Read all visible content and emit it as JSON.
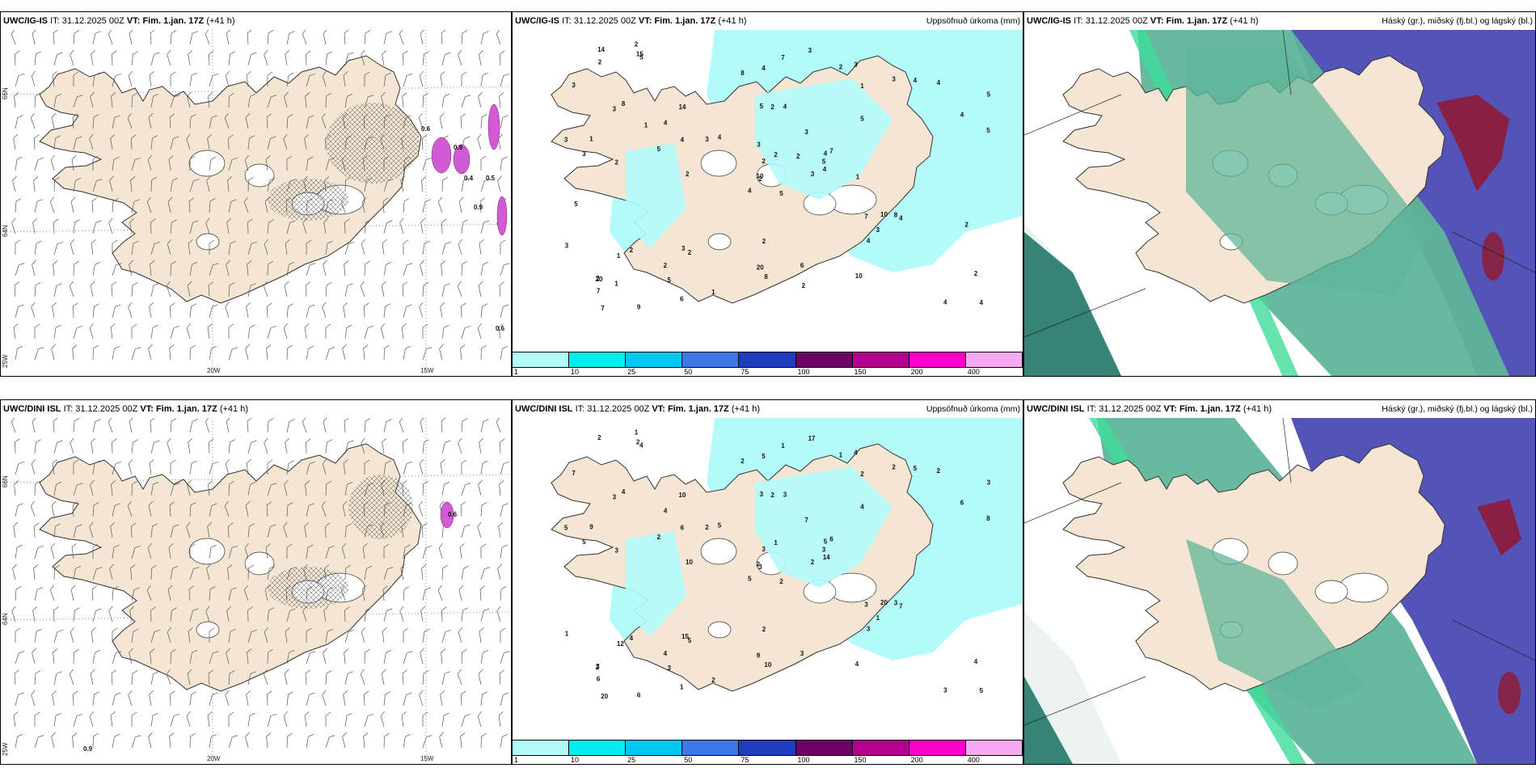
{
  "top_row": {
    "wind_panel": {
      "model": "UWC/IG-IS",
      "it_label": "IT:",
      "it_value": "31.12.2025 00Z",
      "vt_label": "VT:",
      "vt_value": "Fim. 1.jan. 17Z",
      "lead": "(+41 h)",
      "right_title": "",
      "lat_labels": [
        "66N",
        "64N"
      ],
      "lon_labels": [
        "20W",
        "15W"
      ],
      "corner_label": "25W",
      "values": [
        "0.6",
        "0.9",
        "0.4",
        "0.5",
        "0.9",
        "0.6"
      ]
    },
    "precip_panel": {
      "model": "UWC/IG-IS",
      "it_label": "IT:",
      "it_value": "31.12.2025 00Z",
      "vt_label": "VT:",
      "vt_value": "Fim. 1.jan. 17Z",
      "lead": "(+41 h)",
      "right_title": "Uppsöfnuð úrkoma (mm)",
      "values": [
        "5",
        "3",
        "2",
        "2",
        "4",
        "2",
        "3",
        "4",
        "1",
        "3",
        "5",
        "4",
        "2",
        "5",
        "4",
        "5",
        "9",
        "5",
        "3",
        "2",
        "4",
        "7",
        "5",
        "2",
        "7",
        "4",
        "8",
        "4",
        "3",
        "7",
        "5",
        "10",
        "20",
        "2",
        "14",
        "3",
        "3",
        "4",
        "2",
        "8",
        "3",
        "3",
        "5",
        "4",
        "6",
        "3",
        "5",
        "7",
        "8",
        "4",
        "1",
        "4",
        "3",
        "3",
        "10",
        "2",
        "15",
        "14",
        "6",
        "4",
        "7",
        "2",
        "1",
        "4",
        "4",
        "2",
        "2",
        "8",
        "2",
        "3",
        "2",
        "1",
        "10",
        "4",
        "20",
        "2",
        "1",
        "5",
        "3",
        "2",
        "2",
        "1",
        "1",
        "2"
      ]
    },
    "cloud_panel": {
      "model": "UWC/IG-IS",
      "it_label": "IT:",
      "it_value": "31.12.2025 00Z",
      "vt_label": "VT:",
      "vt_value": "Fim. 1.jan. 17Z",
      "lead": "(+41 h)",
      "right_title": "Háský (gr.), miðský (fj.bl.) og lágský (bl.)"
    }
  },
  "bottom_row": {
    "wind_panel": {
      "model": "UWC/DINI ISL",
      "it_label": "IT:",
      "it_value": "31.12.2025 00Z",
      "vt_label": "VT:",
      "vt_value": "Fim. 1.jan. 17Z",
      "lead": "(+41 h)",
      "right_title": "",
      "lat_labels": [
        "66N",
        "64N"
      ],
      "lon_labels": [
        "20W",
        "15W"
      ],
      "corner_label": "25W",
      "values": [
        "0.6",
        "0.9"
      ]
    },
    "precip_panel": {
      "model": "UWC/DINI ISL",
      "it_label": "IT:",
      "it_value": "31.12.2025 00Z",
      "vt_label": "VT:",
      "vt_value": "Fim. 1.jan. 17Z",
      "lead": "(+41 h)",
      "right_title": "Uppsöfnuð úrkoma (mm)",
      "values": [
        "2",
        "3",
        "3",
        "3",
        "5",
        "5",
        "4",
        "3",
        "2",
        "2",
        "4",
        "5",
        "3",
        "3",
        "5",
        "4",
        "6",
        "3",
        "7",
        "4",
        "5",
        "6",
        "3",
        "2",
        "6",
        "7",
        "4",
        "5",
        "5",
        "3",
        "8",
        "2",
        "9",
        "3",
        "10",
        "2",
        "15",
        "3",
        "4",
        "3",
        "17",
        "2",
        "2",
        "3",
        "1",
        "5",
        "3",
        "20",
        "10",
        "14",
        "12",
        "6",
        "7",
        "1",
        "4",
        "4",
        "2",
        "2",
        "3",
        "2",
        "1",
        "10",
        "9",
        "4",
        "5",
        "1",
        "1",
        "2",
        "1",
        "1",
        "2",
        "2",
        "20",
        "6",
        "2"
      ]
    },
    "cloud_panel": {
      "model": "UWC/DINI ISL",
      "it_label": "IT:",
      "it_value": "31.12.2025 00Z",
      "vt_label": "VT:",
      "vt_value": "Fim. 1.jan. 17Z",
      "lead": "(+41 h)",
      "right_title": "Háský (gr.), miðský (fj.bl.) og lágský (bl.)"
    }
  },
  "precip_legend": {
    "labels": [
      "1",
      "10",
      "25",
      "50",
      "75",
      "100",
      "150",
      "200",
      "400"
    ],
    "colors": [
      "#b3fbfb",
      "#00eeee",
      "#00c8ee",
      "#3c78e6",
      "#1e3cbe",
      "#6e0064",
      "#b4008c",
      "#ff00c8",
      "#f5aaf0"
    ]
  },
  "colors": {
    "land": "#f5e6d4",
    "coast": "#333333",
    "precip_light": "#b3fbfb",
    "cloud_high": "#5fb59a",
    "cloud_mid": "#4b4bb4",
    "cloud_low": "#2a7d6e",
    "cloud_dark_red": "#8c1e3c",
    "precip_magenta": "#d25ad2"
  }
}
